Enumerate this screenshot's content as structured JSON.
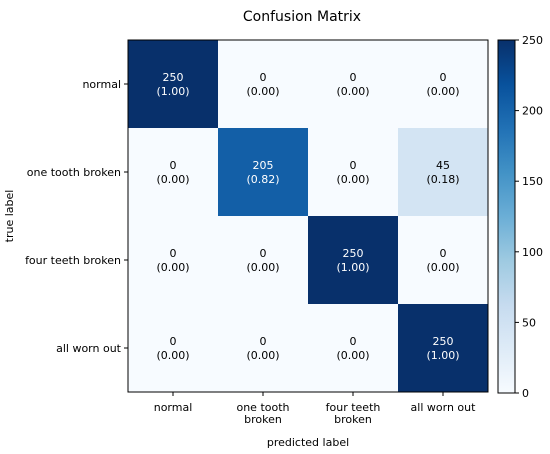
{
  "chart_data": {
    "type": "heatmap",
    "title": "Confusion Matrix",
    "xlabel": "predicted label",
    "ylabel": "true label",
    "row_labels": [
      "normal",
      "one tooth broken",
      "four teeth broken",
      "all worn out"
    ],
    "col_labels": [
      [
        "normal"
      ],
      [
        "one tooth",
        "broken"
      ],
      [
        "four teeth",
        "broken"
      ],
      [
        "all worn out"
      ]
    ],
    "counts": [
      [
        250,
        0,
        0,
        0
      ],
      [
        0,
        205,
        0,
        45
      ],
      [
        0,
        0,
        250,
        0
      ],
      [
        0,
        0,
        0,
        250
      ]
    ],
    "cells": [
      [
        {
          "count": "250",
          "ratio": "(1.00)"
        },
        {
          "count": "0",
          "ratio": "(0.00)"
        },
        {
          "count": "0",
          "ratio": "(0.00)"
        },
        {
          "count": "0",
          "ratio": "(0.00)"
        }
      ],
      [
        {
          "count": "0",
          "ratio": "(0.00)"
        },
        {
          "count": "205",
          "ratio": "(0.82)"
        },
        {
          "count": "0",
          "ratio": "(0.00)"
        },
        {
          "count": "45",
          "ratio": "(0.18)"
        }
      ],
      [
        {
          "count": "0",
          "ratio": "(0.00)"
        },
        {
          "count": "0",
          "ratio": "(0.00)"
        },
        {
          "count": "250",
          "ratio": "(1.00)"
        },
        {
          "count": "0",
          "ratio": "(0.00)"
        }
      ],
      [
        {
          "count": "0",
          "ratio": "(0.00)"
        },
        {
          "count": "0",
          "ratio": "(0.00)"
        },
        {
          "count": "0",
          "ratio": "(0.00)"
        },
        {
          "count": "250",
          "ratio": "(1.00)"
        }
      ]
    ],
    "colorbar": {
      "range": [
        0,
        250
      ],
      "ticks": [
        "0",
        "50",
        "100",
        "150",
        "200",
        "250"
      ],
      "colormap": "Blues"
    },
    "grid": false
  }
}
